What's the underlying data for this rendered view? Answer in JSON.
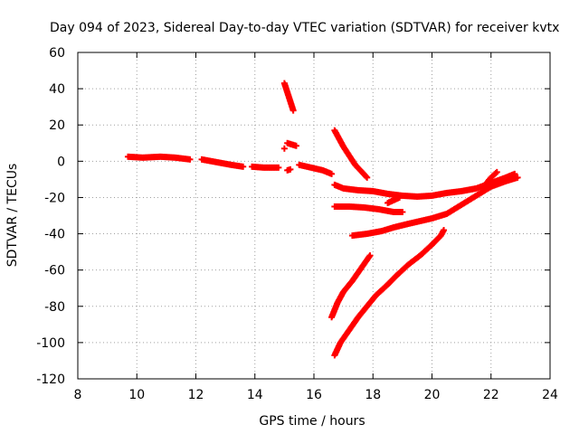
{
  "chart_data": {
    "type": "scatter",
    "title": "Day 094 of 2023, Sidereal Day-to-day VTEC variation (SDTVAR) for receiver kvtx",
    "xlabel": "GPS time / hours",
    "ylabel": "SDTVAR / TECUs",
    "xlim": [
      8,
      24
    ],
    "ylim": [
      -120,
      60
    ],
    "xticks": [
      "8",
      "10",
      "12",
      "14",
      "16",
      "18",
      "20",
      "22",
      "24"
    ],
    "yticks": [
      "60",
      "40",
      "20",
      "0",
      "-20",
      "-40",
      "-60",
      "-80",
      "-100",
      "-120"
    ],
    "grid": true,
    "marker": "+",
    "color": "#ff0000",
    "series": [
      {
        "values": [
          [
            9.7,
            2.5
          ],
          [
            10.2,
            2
          ],
          [
            10.8,
            2.5
          ],
          [
            11.3,
            2
          ],
          [
            11.8,
            1
          ]
        ]
      },
      {
        "values": [
          [
            12.2,
            1
          ],
          [
            12.7,
            -0.5
          ],
          [
            13.2,
            -2
          ],
          [
            13.6,
            -3
          ]
        ]
      },
      {
        "values": [
          [
            13.9,
            -3
          ],
          [
            14.3,
            -3.5
          ],
          [
            14.8,
            -3.5
          ]
        ]
      },
      {
        "values": [
          [
            15.1,
            -5
          ],
          [
            15.2,
            -4.5
          ]
        ]
      },
      {
        "values": [
          [
            15.5,
            -2
          ],
          [
            15.9,
            -3.5
          ],
          [
            16.3,
            -5
          ],
          [
            16.6,
            -7
          ]
        ]
      },
      {
        "values": [
          [
            15.0,
            43
          ],
          [
            15.1,
            38
          ],
          [
            15.2,
            33
          ],
          [
            15.3,
            28
          ]
        ]
      },
      {
        "values": [
          [
            15.1,
            10
          ],
          [
            15.4,
            8.5
          ]
        ]
      },
      {
        "values": [
          [
            15.0,
            7
          ]
        ]
      },
      {
        "values": [
          [
            16.7,
            17
          ],
          [
            17.0,
            8
          ],
          [
            17.4,
            -2
          ],
          [
            17.8,
            -9
          ]
        ]
      },
      {
        "values": [
          [
            16.7,
            -13
          ],
          [
            17.0,
            -15
          ],
          [
            17.5,
            -16
          ],
          [
            18.0,
            -16.5
          ],
          [
            18.5,
            -18
          ],
          [
            19.0,
            -19
          ],
          [
            19.5,
            -19.5
          ],
          [
            20.0,
            -19
          ],
          [
            20.5,
            -17.5
          ],
          [
            21.0,
            -16.5
          ],
          [
            21.5,
            -15
          ],
          [
            22.0,
            -12
          ],
          [
            22.5,
            -9
          ],
          [
            22.8,
            -7
          ]
        ]
      },
      {
        "values": [
          [
            18.5,
            -23
          ],
          [
            18.9,
            -20
          ]
        ]
      },
      {
        "values": [
          [
            16.7,
            -25
          ],
          [
            17.2,
            -25
          ],
          [
            17.7,
            -25.5
          ],
          [
            18.2,
            -26.5
          ],
          [
            18.7,
            -28
          ],
          [
            19.0,
            -28
          ]
        ]
      },
      {
        "values": [
          [
            17.3,
            -41
          ],
          [
            17.8,
            -40
          ],
          [
            18.3,
            -38.5
          ],
          [
            18.7,
            -36.5
          ],
          [
            19.2,
            -34.5
          ],
          [
            19.6,
            -33
          ],
          [
            20.0,
            -31.5
          ],
          [
            20.5,
            -29
          ],
          [
            21.0,
            -24
          ],
          [
            21.5,
            -19
          ],
          [
            22.0,
            -14
          ],
          [
            22.5,
            -11
          ],
          [
            22.9,
            -9
          ]
        ]
      },
      {
        "values": [
          [
            21.8,
            -13
          ],
          [
            22.0,
            -9
          ],
          [
            22.2,
            -6
          ]
        ]
      },
      {
        "values": [
          [
            16.6,
            -86
          ],
          [
            16.8,
            -78
          ],
          [
            17.0,
            -72
          ],
          [
            17.3,
            -66
          ],
          [
            17.6,
            -59
          ],
          [
            17.9,
            -52
          ]
        ]
      },
      {
        "values": [
          [
            16.7,
            -107
          ],
          [
            16.9,
            -100
          ],
          [
            17.2,
            -93
          ],
          [
            17.5,
            -86
          ],
          [
            17.8,
            -80
          ],
          [
            18.1,
            -74
          ],
          [
            18.5,
            -68
          ],
          [
            18.8,
            -63
          ],
          [
            19.2,
            -57
          ],
          [
            19.6,
            -52
          ],
          [
            20.0,
            -46
          ],
          [
            20.3,
            -41
          ],
          [
            20.4,
            -38
          ]
        ]
      }
    ]
  }
}
